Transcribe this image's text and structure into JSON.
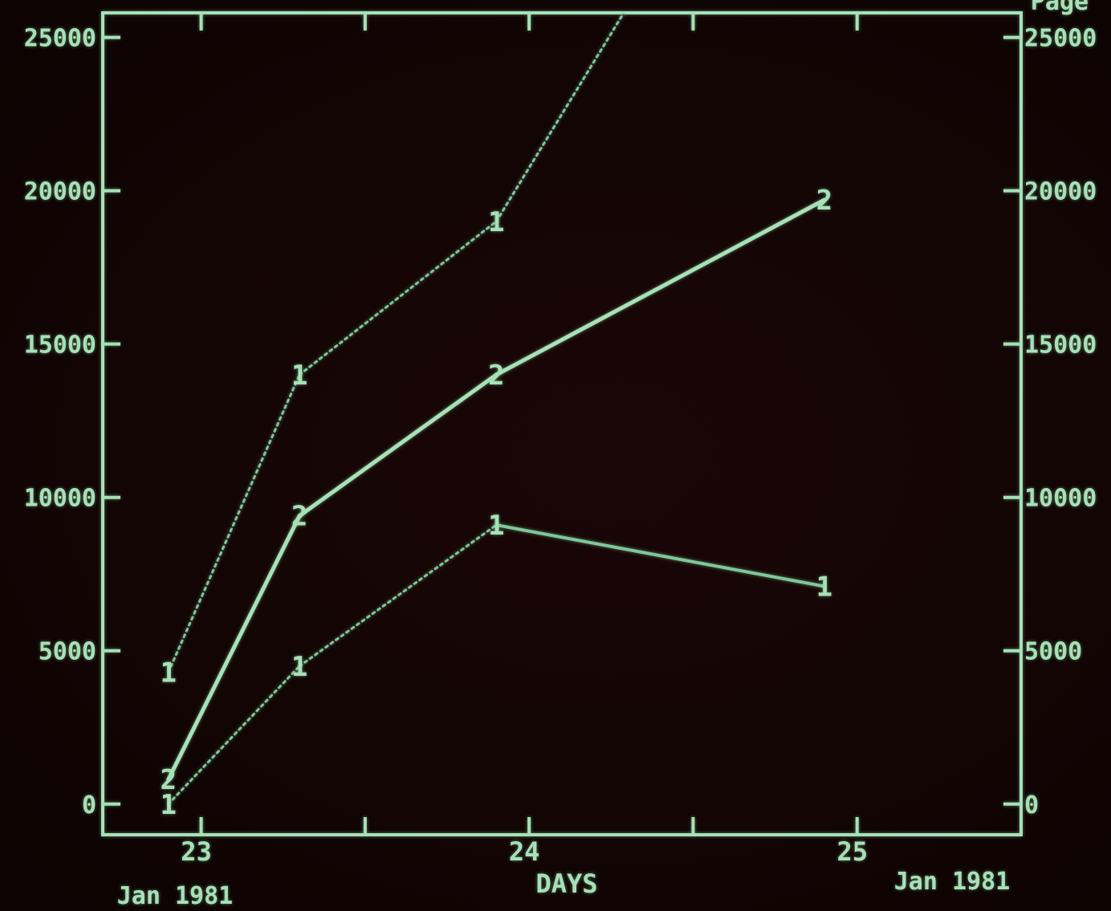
{
  "colors": {
    "phosphor": "#a8e0b8",
    "phosphor_dim": "#7fc79a",
    "background": "#140605"
  },
  "header": {
    "left_title": "",
    "right_title": "Page"
  },
  "chart_data": {
    "type": "line",
    "xlabel": "DAYS",
    "x_date_left": "Jan 1981",
    "x_date_right": "Jan 1981",
    "x_ticks": [
      "23",
      "24",
      "25"
    ],
    "xlim": [
      22.7,
      25.5
    ],
    "ylim": [
      -1000,
      25800
    ],
    "y_ticks_left": [
      "0",
      "5000",
      "10000",
      "15000",
      "20000",
      "25000"
    ],
    "y_ticks_right": [
      "0",
      "5000",
      "10000",
      "15000",
      "20000",
      "25000"
    ],
    "grid": false,
    "series": [
      {
        "marker": "1",
        "style": "dotted",
        "x": [
          22.9,
          23.3,
          23.9,
          24.3
        ],
        "y": [
          4300,
          14000,
          19000,
          26000
        ]
      },
      {
        "marker": "2",
        "style": "solid",
        "x": [
          22.9,
          23.3,
          23.9,
          24.9
        ],
        "y": [
          800,
          9400,
          14000,
          19700
        ]
      },
      {
        "marker": "1",
        "style": "mixed",
        "x": [
          22.9,
          23.3,
          23.9,
          24.9
        ],
        "y": [
          0,
          4500,
          9100,
          7100
        ]
      }
    ]
  }
}
